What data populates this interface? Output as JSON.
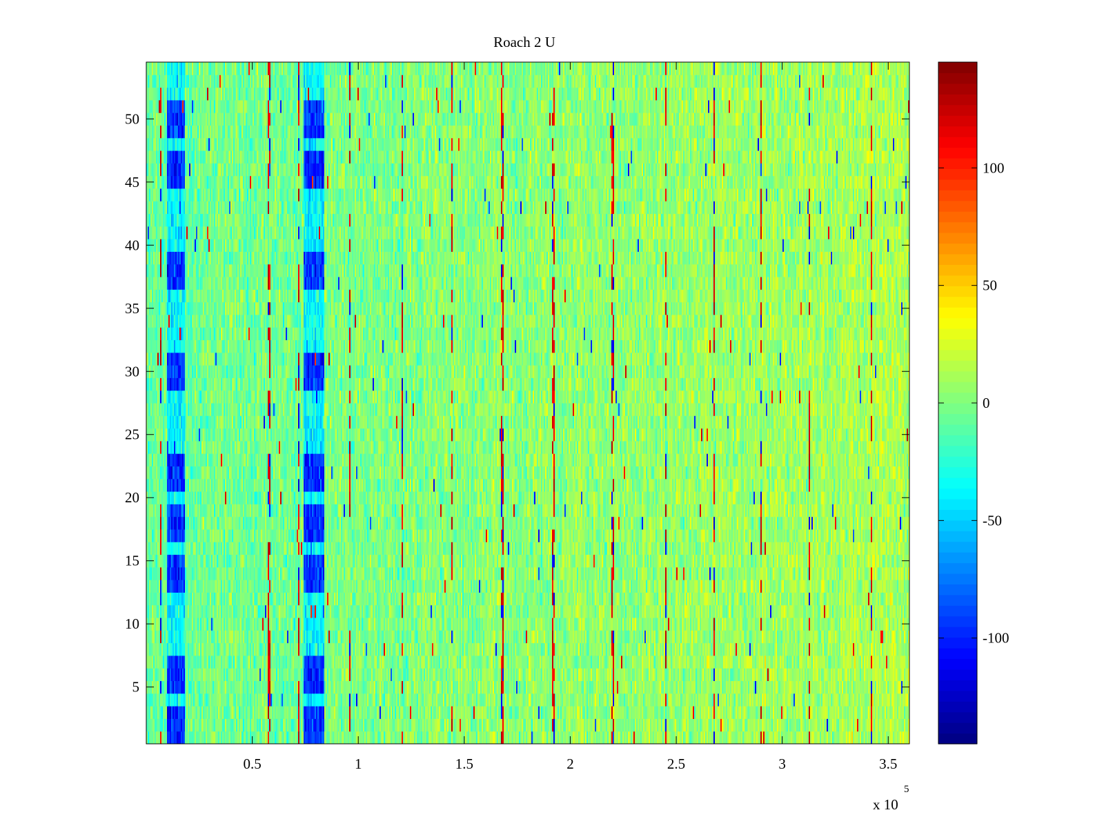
{
  "chart_data": {
    "type": "heatmap",
    "title": "Roach 2 U",
    "xlabel": "",
    "ylabel": "",
    "x_exponent_label": "x 10",
    "x_exponent": "5",
    "xlim": [
      0,
      3.6
    ],
    "ylim": [
      0.5,
      54.5
    ],
    "row_count": 54,
    "x_ticks": [
      {
        "value": 0.5,
        "label": "0.5"
      },
      {
        "value": 1,
        "label": "1"
      },
      {
        "value": 1.5,
        "label": "1.5"
      },
      {
        "value": 2,
        "label": "2"
      },
      {
        "value": 2.5,
        "label": "2.5"
      },
      {
        "value": 3,
        "label": "3"
      },
      {
        "value": 3.5,
        "label": "3.5"
      }
    ],
    "y_ticks": [
      {
        "value": 5,
        "label": "5"
      },
      {
        "value": 10,
        "label": "10"
      },
      {
        "value": 15,
        "label": "15"
      },
      {
        "value": 20,
        "label": "20"
      },
      {
        "value": 25,
        "label": "25"
      },
      {
        "value": 30,
        "label": "30"
      },
      {
        "value": 35,
        "label": "35"
      },
      {
        "value": 40,
        "label": "40"
      },
      {
        "value": 45,
        "label": "45"
      },
      {
        "value": 50,
        "label": "50"
      }
    ],
    "colorbar": {
      "colormap": "jet",
      "range": [
        -145,
        145
      ],
      "ticks": [
        {
          "value": 100,
          "label": "100"
        },
        {
          "value": 50,
          "label": "50"
        },
        {
          "value": 0,
          "label": "0"
        },
        {
          "value": -50,
          "label": "-50"
        },
        {
          "value": -100,
          "label": "-100"
        }
      ]
    },
    "cold_column_bands": [
      {
        "x_range": [
          0.1,
          0.18
        ]
      },
      {
        "x_range": [
          0.74,
          0.84
        ]
      }
    ],
    "cold_row_groups": [
      1,
      5,
      13,
      17,
      21,
      29,
      37,
      45,
      49
    ],
    "hot_spike_columns": [
      0.07,
      0.58,
      0.72,
      0.96,
      1.21,
      1.44,
      1.68,
      1.92,
      2.2,
      2.45,
      2.68,
      2.9,
      3.13,
      3.42
    ],
    "grid": false,
    "legend": "none"
  }
}
